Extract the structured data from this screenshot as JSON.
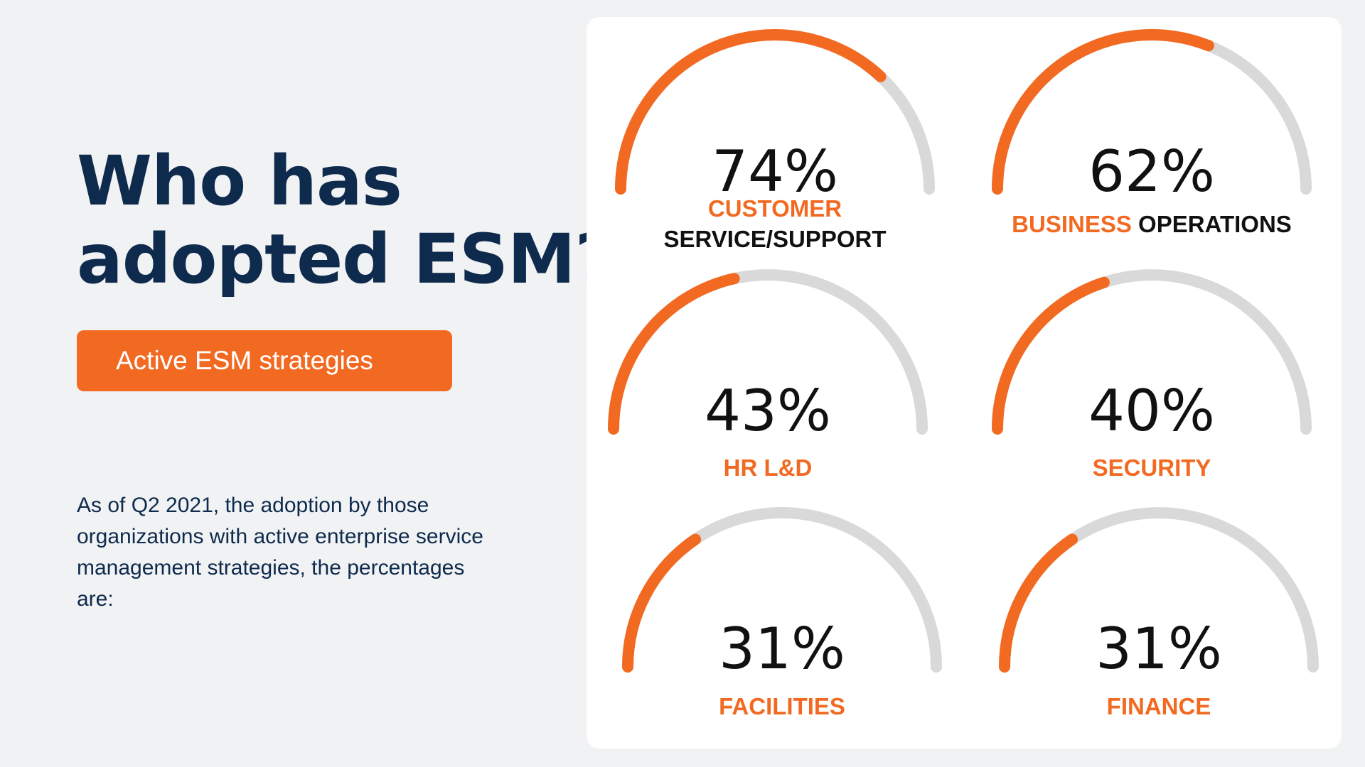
{
  "title_line1": "Who has",
  "title_line2": "adopted ESM?",
  "tag_label": "Active ESM strategies",
  "description": "As of Q2 2021, the adoption by those organizations with active enterprise service management strategies, the percentages are:",
  "colors": {
    "accent": "#f26a22",
    "track": "#d9d9d9",
    "title": "#0e2a4c",
    "value": "#111111"
  },
  "chart_data": {
    "type": "gauge",
    "gauges": [
      {
        "value": 74,
        "value_label": "74%",
        "label_lines": [
          [
            {
              "text": "CUSTOMER",
              "color": "orange"
            }
          ],
          [
            {
              "text": "SERVICE/SUPPORT",
              "color": "black"
            }
          ]
        ]
      },
      {
        "value": 62,
        "value_label": "62%",
        "label_lines": [
          [
            {
              "text": "BUSINESS",
              "color": "orange"
            },
            {
              "text": " OPERATIONS",
              "color": "black"
            }
          ]
        ]
      },
      {
        "value": 43,
        "value_label": "43%",
        "label_lines": [
          [
            {
              "text": "HR L&D",
              "color": "orange"
            }
          ]
        ]
      },
      {
        "value": 40,
        "value_label": "40%",
        "label_lines": [
          [
            {
              "text": "SECURITY",
              "color": "orange"
            }
          ]
        ]
      },
      {
        "value": 31,
        "value_label": "31%",
        "label_lines": [
          [
            {
              "text": "FACILITIES",
              "color": "orange"
            }
          ]
        ]
      },
      {
        "value": 31,
        "value_label": "31%",
        "label_lines": [
          [
            {
              "text": "FINANCE",
              "color": "orange"
            }
          ]
        ]
      }
    ]
  }
}
